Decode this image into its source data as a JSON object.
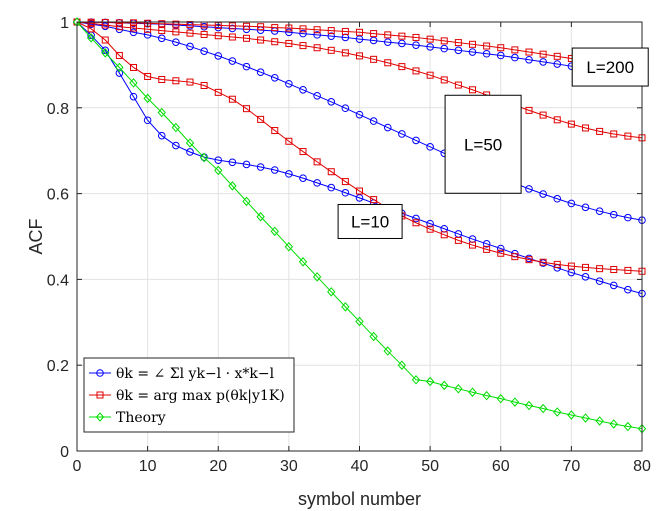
{
  "chart_data": {
    "type": "line",
    "xlabel": "symbol number",
    "ylabel": "ACF",
    "xlim": [
      0,
      80
    ],
    "ylim": [
      0,
      1
    ],
    "xticks": [
      0,
      10,
      20,
      30,
      40,
      50,
      60,
      70,
      80
    ],
    "yticks": [
      0,
      0.2,
      0.4,
      0.6,
      0.8,
      1
    ],
    "ytick_labels": [
      "0",
      "0.2",
      "0.4",
      "0.6",
      "0.8",
      "1"
    ],
    "grid": true,
    "legend_position": "bottom-left",
    "colors": {
      "blue": "#0000ff",
      "red": "#e00000",
      "green": "#00dd00"
    },
    "x": [
      0,
      2,
      4,
      6,
      8,
      10,
      12,
      14,
      16,
      18,
      20,
      22,
      24,
      26,
      28,
      30,
      32,
      34,
      36,
      38,
      40,
      42,
      44,
      46,
      48,
      50,
      52,
      54,
      56,
      58,
      60,
      62,
      64,
      66,
      68,
      70,
      72,
      74,
      76,
      78,
      80
    ],
    "legend": [
      {
        "marker": "circle",
        "color": "#0000ff",
        "text": "θk = ∠ Σl yk−l · x*k−l"
      },
      {
        "marker": "square",
        "color": "#e00000",
        "text": "θk = arg max p(θk|y1K)"
      },
      {
        "marker": "diamond",
        "color": "#00dd00",
        "text": "Theory"
      }
    ],
    "annotations": [
      {
        "text": "L=200",
        "x": 75.5,
        "y": 0.895
      },
      {
        "text": "L=50",
        "x": 57.5,
        "y": 0.715
      },
      {
        "text": "L=10",
        "x": 41.5,
        "y": 0.535
      }
    ],
    "series": [
      {
        "group": "L=200",
        "method": "angle",
        "color": "#0000ff",
        "marker": "circle",
        "values": [
          1.0,
          0.9995,
          0.999,
          0.998,
          0.997,
          0.996,
          0.995,
          0.993,
          0.991,
          0.989,
          0.987,
          0.985,
          0.983,
          0.981,
          0.979,
          0.976,
          0.973,
          0.97,
          0.967,
          0.964,
          0.96,
          0.957,
          0.953,
          0.95,
          0.946,
          0.942,
          0.938,
          0.934,
          0.93,
          0.926,
          0.922,
          0.917,
          0.912,
          0.907,
          0.902,
          0.897,
          0.892,
          0.887,
          0.883,
          0.879,
          0.875
        ]
      },
      {
        "group": "L=200",
        "method": "argmax",
        "color": "#e00000",
        "marker": "square",
        "values": [
          1.0,
          0.9995,
          0.999,
          0.998,
          0.998,
          0.997,
          0.996,
          0.995,
          0.994,
          0.993,
          0.992,
          0.991,
          0.99,
          0.989,
          0.987,
          0.986,
          0.984,
          0.982,
          0.98,
          0.978,
          0.976,
          0.973,
          0.97,
          0.967,
          0.964,
          0.96,
          0.956,
          0.952,
          0.948,
          0.944,
          0.94,
          0.935,
          0.93,
          0.925,
          0.92,
          0.915,
          0.91,
          0.905,
          0.9,
          0.896,
          0.892
        ]
      },
      {
        "group": "L=50",
        "method": "angle",
        "color": "#0000ff",
        "marker": "circle",
        "values": [
          1.0,
          0.995,
          0.99,
          0.983,
          0.976,
          0.97,
          0.962,
          0.953,
          0.943,
          0.932,
          0.921,
          0.909,
          0.896,
          0.883,
          0.87,
          0.856,
          0.842,
          0.828,
          0.814,
          0.799,
          0.784,
          0.769,
          0.754,
          0.739,
          0.724,
          0.709,
          0.694,
          0.68,
          0.665,
          0.651,
          0.637,
          0.624,
          0.611,
          0.599,
          0.588,
          0.577,
          0.568,
          0.559,
          0.551,
          0.544,
          0.538
        ]
      },
      {
        "group": "L=50",
        "method": "argmax",
        "color": "#e00000",
        "marker": "square",
        "values": [
          1.0,
          0.997,
          0.993,
          0.989,
          0.986,
          0.983,
          0.98,
          0.977,
          0.974,
          0.971,
          0.968,
          0.965,
          0.962,
          0.958,
          0.954,
          0.95,
          0.945,
          0.94,
          0.934,
          0.928,
          0.921,
          0.913,
          0.905,
          0.896,
          0.886,
          0.876,
          0.865,
          0.853,
          0.842,
          0.83,
          0.818,
          0.806,
          0.794,
          0.783,
          0.772,
          0.762,
          0.753,
          0.745,
          0.739,
          0.734,
          0.73
        ]
      },
      {
        "group": "L=10",
        "method": "angle",
        "color": "#0000ff",
        "marker": "circle",
        "values": [
          1.0,
          0.969,
          0.934,
          0.881,
          0.826,
          0.771,
          0.735,
          0.712,
          0.697,
          0.685,
          0.678,
          0.673,
          0.668,
          0.662,
          0.655,
          0.646,
          0.636,
          0.625,
          0.614,
          0.602,
          0.59,
          0.578,
          0.566,
          0.554,
          0.542,
          0.53,
          0.518,
          0.506,
          0.494,
          0.483,
          0.472,
          0.46,
          0.449,
          0.438,
          0.427,
          0.416,
          0.406,
          0.396,
          0.386,
          0.376,
          0.367
        ]
      },
      {
        "group": "L=10",
        "method": "argmax",
        "color": "#e00000",
        "marker": "square",
        "values": [
          1.0,
          0.984,
          0.958,
          0.922,
          0.894,
          0.873,
          0.866,
          0.863,
          0.86,
          0.852,
          0.836,
          0.82,
          0.798,
          0.773,
          0.747,
          0.722,
          0.698,
          0.674,
          0.651,
          0.628,
          0.606,
          0.586,
          0.566,
          0.548,
          0.532,
          0.517,
          0.504,
          0.491,
          0.48,
          0.47,
          0.461,
          0.453,
          0.446,
          0.44,
          0.435,
          0.431,
          0.428,
          0.425,
          0.423,
          0.421,
          0.419
        ]
      },
      {
        "group": "Theory",
        "method": "theory",
        "color": "#00dd00",
        "marker": "diamond",
        "values": [
          1.0,
          0.963,
          0.928,
          0.894,
          0.858,
          0.822,
          0.789,
          0.754,
          0.718,
          0.684,
          0.654,
          0.618,
          0.582,
          0.546,
          0.512,
          0.476,
          0.441,
          0.406,
          0.371,
          0.336,
          0.302,
          0.267,
          0.233,
          0.2,
          0.166,
          0.162,
          0.153,
          0.145,
          0.137,
          0.129,
          0.122,
          0.114,
          0.106,
          0.099,
          0.091,
          0.084,
          0.077,
          0.07,
          0.063,
          0.057,
          0.052
        ]
      }
    ]
  }
}
